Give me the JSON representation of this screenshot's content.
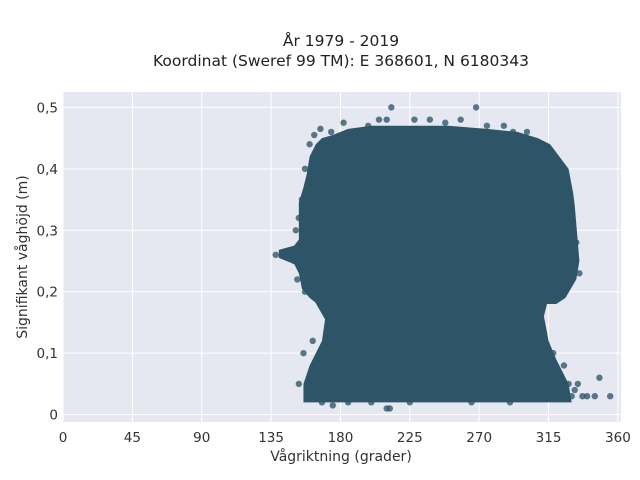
{
  "chart_data": {
    "type": "scatter",
    "title_line1": "År 1979 - 2019",
    "title_line2": "Koordinat (Sweref 99 TM): E 368601, N 6180343",
    "xlabel": "Vågriktning (grader)",
    "ylabel": "Signifikant våghöjd (m)",
    "xlim": [
      0,
      362
    ],
    "ylim": [
      -0.012,
      0.525
    ],
    "xticks": [
      {
        "value": 0,
        "label": "0"
      },
      {
        "value": 45,
        "label": "45"
      },
      {
        "value": 90,
        "label": "90"
      },
      {
        "value": 135,
        "label": "135"
      },
      {
        "value": 180,
        "label": "180"
      },
      {
        "value": 225,
        "label": "225"
      },
      {
        "value": 270,
        "label": "270"
      },
      {
        "value": 315,
        "label": "315"
      },
      {
        "value": 360,
        "label": "360"
      }
    ],
    "yticks": [
      {
        "value": 0,
        "label": "0"
      },
      {
        "value": 0.1,
        "label": "0,1"
      },
      {
        "value": 0.2,
        "label": "0,2"
      },
      {
        "value": 0.3,
        "label": "0,3"
      },
      {
        "value": 0.4,
        "label": "0,4"
      },
      {
        "value": 0.5,
        "label": "0,5"
      }
    ],
    "grid": true,
    "legend": "none",
    "marker_color": "#2e5468",
    "background_color": "#e5e8f1",
    "points": [
      [
        138,
        0.26
      ],
      [
        142,
        0.26
      ],
      [
        146,
        0.262
      ],
      [
        150,
        0.25
      ],
      [
        151,
        0.3
      ],
      [
        152,
        0.22
      ],
      [
        153,
        0.05
      ],
      [
        153,
        0.32
      ],
      [
        155,
        0.35
      ],
      [
        156,
        0.1
      ],
      [
        157,
        0.2
      ],
      [
        157,
        0.4
      ],
      [
        158,
        0.03
      ],
      [
        160,
        0.28
      ],
      [
        160,
        0.44
      ],
      [
        162,
        0.12
      ],
      [
        163,
        0.455
      ],
      [
        165,
        0.38
      ],
      [
        167,
        0.465
      ],
      [
        168,
        0.02
      ],
      [
        170,
        0.1
      ],
      [
        170,
        0.24
      ],
      [
        172,
        0.36
      ],
      [
        174,
        0.46
      ],
      [
        175,
        0.015
      ],
      [
        178,
        0.12
      ],
      [
        179,
        0.3
      ],
      [
        180,
        0.44
      ],
      [
        182,
        0.475
      ],
      [
        185,
        0.02
      ],
      [
        186,
        0.2
      ],
      [
        188,
        0.4
      ],
      [
        190,
        0.46
      ],
      [
        192,
        0.03
      ],
      [
        195,
        0.15
      ],
      [
        197,
        0.35
      ],
      [
        198,
        0.47
      ],
      [
        200,
        0.02
      ],
      [
        205,
        0.25
      ],
      [
        205,
        0.48
      ],
      [
        210,
        0.01
      ],
      [
        210,
        0.48
      ],
      [
        213,
        0.5
      ],
      [
        215,
        0.1
      ],
      [
        218,
        0.3
      ],
      [
        220,
        0.46
      ],
      [
        225,
        0.02
      ],
      [
        228,
        0.48
      ],
      [
        230,
        0.2
      ],
      [
        235,
        0.03
      ],
      [
        238,
        0.48
      ],
      [
        240,
        0.4
      ],
      [
        245,
        0.1
      ],
      [
        248,
        0.475
      ],
      [
        250,
        0.3
      ],
      [
        255,
        0.03
      ],
      [
        258,
        0.48
      ],
      [
        260,
        0.22
      ],
      [
        262,
        0.46
      ],
      [
        265,
        0.02
      ],
      [
        268,
        0.5
      ],
      [
        270,
        0.12
      ],
      [
        272,
        0.35
      ],
      [
        275,
        0.47
      ],
      [
        278,
        0.03
      ],
      [
        280,
        0.2
      ],
      [
        282,
        0.44
      ],
      [
        285,
        0.06
      ],
      [
        286,
        0.47
      ],
      [
        288,
        0.3
      ],
      [
        290,
        0.02
      ],
      [
        292,
        0.46
      ],
      [
        295,
        0.1
      ],
      [
        297,
        0.4
      ],
      [
        300,
        0.025
      ],
      [
        301,
        0.46
      ],
      [
        303,
        0.25
      ],
      [
        305,
        0.08
      ],
      [
        306,
        0.44
      ],
      [
        308,
        0.04
      ],
      [
        310,
        0.35
      ],
      [
        312,
        0.12
      ],
      [
        313,
        0.42
      ],
      [
        315,
        0.05
      ],
      [
        316,
        0.2
      ],
      [
        318,
        0.1
      ],
      [
        320,
        0.3
      ],
      [
        322,
        0.03
      ],
      [
        323,
        0.4
      ],
      [
        325,
        0.08
      ],
      [
        326,
        0.21
      ],
      [
        328,
        0.05
      ],
      [
        329,
        0.33
      ],
      [
        330,
        0.03
      ],
      [
        331,
        0.25
      ],
      [
        332,
        0.04
      ],
      [
        333,
        0.28
      ],
      [
        334,
        0.05
      ],
      [
        335,
        0.23
      ],
      [
        337,
        0.03
      ],
      [
        340,
        0.03
      ],
      [
        345,
        0.03
      ],
      [
        348,
        0.06
      ],
      [
        355,
        0.03
      ],
      [
        212,
        0.01
      ]
    ]
  }
}
